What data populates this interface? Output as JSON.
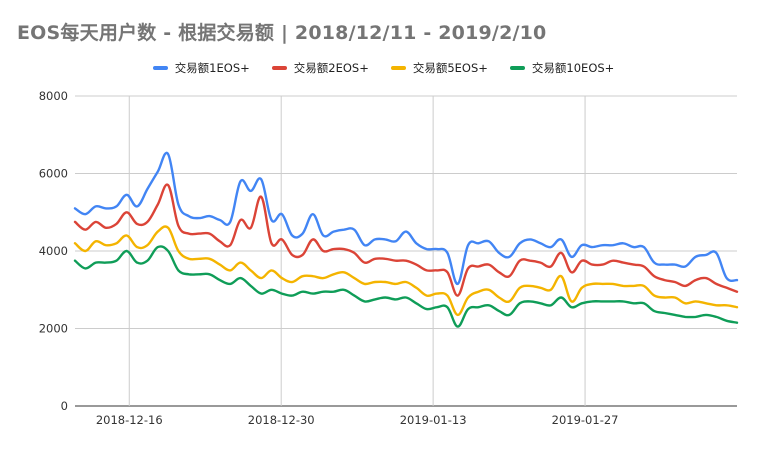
{
  "chart_data": {
    "type": "line",
    "title": "EOS每天用户数 - 根据交易额 | 2018/12/11 - 2019/2/10",
    "xlabel": "",
    "ylabel": "",
    "ylim": [
      0,
      8000
    ],
    "yticks": [
      0,
      2000,
      4000,
      6000,
      8000
    ],
    "x_start": "2018-12-11",
    "x_end": "2019-02-10",
    "xticks": [
      "2018-12-16",
      "2018-12-30",
      "2019-01-13",
      "2019-01-27"
    ],
    "grid": true,
    "legend_position": "top",
    "series": [
      {
        "name": "交易额1EOS+",
        "color": "#4285f4",
        "values": [
          5100,
          4950,
          5150,
          5100,
          5150,
          5450,
          5150,
          5600,
          6050,
          6500,
          5200,
          4900,
          4850,
          4900,
          4800,
          4750,
          5800,
          5550,
          5850,
          4800,
          4950,
          4400,
          4450,
          4950,
          4400,
          4500,
          4550,
          4550,
          4150,
          4300,
          4300,
          4250,
          4500,
          4200,
          4050,
          4050,
          3950,
          3150,
          4150,
          4200,
          4250,
          3950,
          3850,
          4200,
          4300,
          4200,
          4100,
          4300,
          3850,
          4150,
          4100,
          4150,
          4150,
          4200,
          4100,
          4100,
          3700,
          3650,
          3650,
          3600,
          3850,
          3900,
          3950,
          3300,
          3250
        ]
      },
      {
        "name": "交易额2EOS+",
        "color": "#db4437",
        "values": [
          4750,
          4550,
          4750,
          4600,
          4700,
          5000,
          4700,
          4750,
          5200,
          5700,
          4650,
          4450,
          4450,
          4450,
          4250,
          4150,
          4800,
          4600,
          5400,
          4200,
          4300,
          3900,
          3900,
          4300,
          4000,
          4050,
          4050,
          3950,
          3700,
          3800,
          3800,
          3750,
          3750,
          3650,
          3500,
          3500,
          3450,
          2850,
          3550,
          3600,
          3650,
          3450,
          3350,
          3750,
          3750,
          3700,
          3600,
          3950,
          3450,
          3750,
          3650,
          3650,
          3750,
          3700,
          3650,
          3600,
          3350,
          3250,
          3200,
          3100,
          3250,
          3300,
          3150,
          3050,
          2950
        ]
      },
      {
        "name": "交易额5EOS+",
        "color": "#f4b400",
        "values": [
          4200,
          4000,
          4250,
          4150,
          4200,
          4400,
          4100,
          4150,
          4500,
          4600,
          4000,
          3800,
          3800,
          3800,
          3650,
          3500,
          3700,
          3500,
          3300,
          3500,
          3300,
          3200,
          3350,
          3350,
          3300,
          3400,
          3450,
          3300,
          3150,
          3200,
          3200,
          3150,
          3200,
          3050,
          2850,
          2900,
          2850,
          2350,
          2800,
          2950,
          3000,
          2800,
          2700,
          3050,
          3100,
          3050,
          3000,
          3350,
          2700,
          3050,
          3150,
          3150,
          3150,
          3100,
          3100,
          3100,
          2850,
          2800,
          2800,
          2650,
          2700,
          2650,
          2600,
          2600,
          2550
        ]
      },
      {
        "name": "交易额10EOS+",
        "color": "#0f9d58",
        "values": [
          3750,
          3550,
          3700,
          3700,
          3750,
          4000,
          3700,
          3750,
          4100,
          4000,
          3500,
          3400,
          3400,
          3400,
          3250,
          3150,
          3300,
          3100,
          2900,
          3000,
          2900,
          2850,
          2950,
          2900,
          2950,
          2950,
          3000,
          2850,
          2700,
          2750,
          2800,
          2750,
          2800,
          2650,
          2500,
          2550,
          2550,
          2050,
          2500,
          2550,
          2600,
          2450,
          2350,
          2650,
          2700,
          2650,
          2600,
          2800,
          2550,
          2650,
          2700,
          2700,
          2700,
          2700,
          2650,
          2650,
          2450,
          2400,
          2350,
          2300,
          2300,
          2350,
          2300,
          2200,
          2150
        ]
      }
    ]
  }
}
